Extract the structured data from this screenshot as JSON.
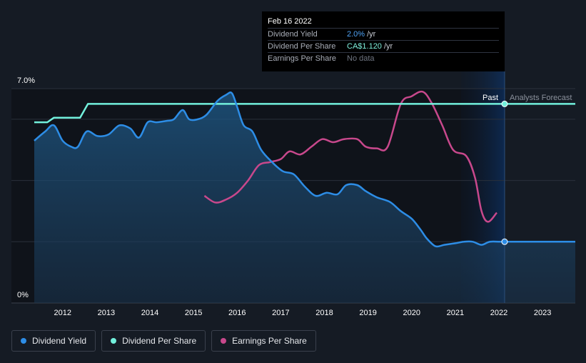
{
  "tooltip": {
    "date": "Feb 16 2022",
    "rows": [
      {
        "label": "Dividend Yield",
        "value": "2.0%",
        "unit": "/yr"
      },
      {
        "label": "Dividend Per Share",
        "value": "CA$1.120",
        "unit": "/yr"
      },
      {
        "label": "Earnings Per Share",
        "value": "No data",
        "unit": ""
      }
    ]
  },
  "labels": {
    "past": "Past",
    "forecast": "Analysts Forecast"
  },
  "legend": [
    {
      "label": "Dividend Yield",
      "color": "#2d8de6"
    },
    {
      "label": "Dividend Per Share",
      "color": "#72f0dc"
    },
    {
      "label": "Earnings Per Share",
      "color": "#c8488c"
    }
  ],
  "chart_data": {
    "type": "line",
    "y_ticks": [
      "7.0%",
      "0%"
    ],
    "ylim": [
      0,
      7.0
    ],
    "x_ticks": [
      "2012",
      "2013",
      "2014",
      "2015",
      "2016",
      "2017",
      "2018",
      "2019",
      "2020",
      "2021",
      "2022",
      "2023"
    ],
    "xlim": [
      2011.35,
      2023.75
    ],
    "forecast_start": 2022.13,
    "grid": true,
    "series": [
      {
        "name": "Dividend Yield",
        "color": "#2d8de6",
        "points": [
          [
            2011.35,
            5.3
          ],
          [
            2011.6,
            5.6
          ],
          [
            2011.8,
            5.8
          ],
          [
            2012.0,
            5.3
          ],
          [
            2012.2,
            5.1
          ],
          [
            2012.35,
            5.1
          ],
          [
            2012.55,
            5.6
          ],
          [
            2012.8,
            5.45
          ],
          [
            2013.05,
            5.5
          ],
          [
            2013.3,
            5.8
          ],
          [
            2013.55,
            5.7
          ],
          [
            2013.75,
            5.4
          ],
          [
            2013.95,
            5.9
          ],
          [
            2014.15,
            5.9
          ],
          [
            2014.4,
            5.95
          ],
          [
            2014.55,
            6.0
          ],
          [
            2014.75,
            6.3
          ],
          [
            2014.9,
            6.0
          ],
          [
            2015.1,
            6.0
          ],
          [
            2015.3,
            6.15
          ],
          [
            2015.55,
            6.6
          ],
          [
            2015.75,
            6.8
          ],
          [
            2015.88,
            6.85
          ],
          [
            2016.0,
            6.4
          ],
          [
            2016.15,
            5.8
          ],
          [
            2016.35,
            5.6
          ],
          [
            2016.55,
            5.0
          ],
          [
            2016.8,
            4.6
          ],
          [
            2017.05,
            4.3
          ],
          [
            2017.3,
            4.2
          ],
          [
            2017.55,
            3.8
          ],
          [
            2017.8,
            3.5
          ],
          [
            2018.05,
            3.6
          ],
          [
            2018.3,
            3.55
          ],
          [
            2018.5,
            3.85
          ],
          [
            2018.75,
            3.85
          ],
          [
            2018.95,
            3.65
          ],
          [
            2019.2,
            3.45
          ],
          [
            2019.5,
            3.3
          ],
          [
            2019.75,
            3.0
          ],
          [
            2020.0,
            2.75
          ],
          [
            2020.2,
            2.4
          ],
          [
            2020.35,
            2.1
          ],
          [
            2020.55,
            1.85
          ],
          [
            2020.75,
            1.9
          ],
          [
            2021.0,
            1.95
          ],
          [
            2021.2,
            2.0
          ],
          [
            2021.4,
            2.0
          ],
          [
            2021.6,
            1.9
          ],
          [
            2021.8,
            2.0
          ],
          [
            2022.13,
            2.0
          ],
          [
            2023.75,
            2.0
          ]
        ]
      },
      {
        "name": "Dividend Per Share",
        "color": "#72f0dc",
        "points": [
          [
            2011.35,
            5.9
          ],
          [
            2011.65,
            5.9
          ],
          [
            2011.8,
            6.05
          ],
          [
            2012.4,
            6.05
          ],
          [
            2012.58,
            6.5
          ],
          [
            2022.13,
            6.5
          ],
          [
            2023.75,
            6.5
          ]
        ]
      },
      {
        "name": "Earnings Per Share",
        "color": "#c8488c",
        "points": [
          [
            2015.25,
            3.5
          ],
          [
            2015.5,
            3.28
          ],
          [
            2015.75,
            3.38
          ],
          [
            2016.0,
            3.6
          ],
          [
            2016.25,
            4.0
          ],
          [
            2016.5,
            4.5
          ],
          [
            2016.75,
            4.6
          ],
          [
            2017.0,
            4.7
          ],
          [
            2017.2,
            4.95
          ],
          [
            2017.45,
            4.85
          ],
          [
            2017.7,
            5.1
          ],
          [
            2017.95,
            5.35
          ],
          [
            2018.2,
            5.25
          ],
          [
            2018.45,
            5.35
          ],
          [
            2018.75,
            5.35
          ],
          [
            2018.95,
            5.1
          ],
          [
            2019.2,
            5.05
          ],
          [
            2019.45,
            5.1
          ],
          [
            2019.75,
            6.5
          ],
          [
            2020.0,
            6.75
          ],
          [
            2020.25,
            6.9
          ],
          [
            2020.45,
            6.55
          ],
          [
            2020.7,
            5.8
          ],
          [
            2020.95,
            5.0
          ],
          [
            2021.25,
            4.8
          ],
          [
            2021.45,
            4.1
          ],
          [
            2021.6,
            3.0
          ],
          [
            2021.75,
            2.65
          ],
          [
            2021.95,
            2.95
          ]
        ]
      }
    ]
  }
}
